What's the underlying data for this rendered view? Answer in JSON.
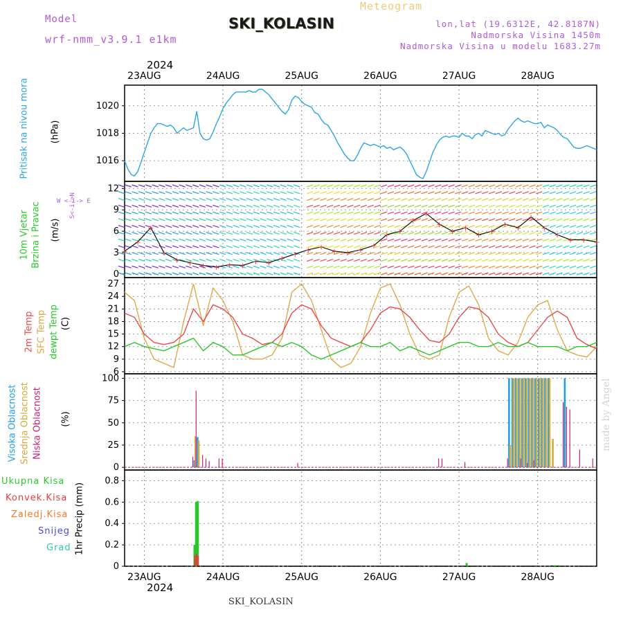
{
  "header": {
    "model_label": "Model",
    "model_name": "wrf-nmm_v3.9.1 e1km",
    "title": "SKI_KOLASIN",
    "meteogram_label": "Meteogram",
    "lonlat": "lon,lat (19.6312E, 42.8187N)",
    "altitude": "Nadmorska Visina 1450m",
    "model_altitude": "Nadmorska Visina u modelu 1683.27m"
  },
  "top_axis": {
    "year": "2024",
    "days": [
      "23AUG",
      "24AUG",
      "25AUG",
      "26AUG",
      "27AUG",
      "28AUG"
    ]
  },
  "bottom_axis": {
    "year": "2024",
    "days": [
      "23AUG",
      "24AUG",
      "25AUG",
      "26AUG",
      "27AUG",
      "28AUG"
    ]
  },
  "footer_station": "SKI_KOLASIN",
  "watermark": "made by Angel",
  "colors": {
    "pressure": "#2aa6e0",
    "temp2m": "#e84a4a",
    "sfc_temp": "#e0a848",
    "dewpoint": "#28c828",
    "high_cloud": "#1e9ee8",
    "mid_cloud": "#d8a83a",
    "low_cloud": "#c8207a",
    "total_precip": "#28c828",
    "conv_precip": "#e83a3a",
    "axis_purple": "#b05ad8"
  },
  "panels": {
    "pressure": {
      "label": "Pritisak na nivou mora",
      "unit": "(hPa)",
      "ticks": [
        "1016",
        "1018",
        "1020"
      ]
    },
    "wind": {
      "label_line1": "10m Vjetar",
      "label_line2": "Brzina i Pravac",
      "unit": "(m/s)",
      "ticks": [
        "0",
        "3",
        "6",
        "9",
        "12"
      ],
      "compass": "W <-i-> E",
      "compass_v": "S<-i->N"
    },
    "temp": {
      "label_2m": "2m Temp",
      "label_sfc": "SFC Temp",
      "label_dew": "dewpt Temp",
      "unit": "(C)",
      "ticks": [
        "6",
        "9",
        "12",
        "15",
        "18",
        "21",
        "24",
        "27"
      ]
    },
    "cloud": {
      "label_high": "Visoka Oblacnost",
      "label_mid": "Srednja Oblacnost",
      "label_low": "Niska Oblacnost",
      "unit": "(%)",
      "ticks": [
        "0",
        "25",
        "50",
        "75",
        "100"
      ]
    },
    "precip": {
      "unit": "1hr Precip (mm)",
      "ticks": [
        "0",
        "0.2",
        "0.4",
        "0.6",
        "0.8"
      ],
      "legend": [
        "Ukupna Kisa",
        "Konvek.Kisa",
        "Zaledj.Kisa",
        "Snijeg",
        "Grad"
      ],
      "legend_colors": [
        "#28c828",
        "#e83a3a",
        "#f07828",
        "#4a4ad8",
        "#28c8b0"
      ]
    }
  },
  "chart_data": [
    {
      "type": "line",
      "title": "Pritisak na nivou mora",
      "ylabel": "(hPa)",
      "ylim": [
        1014.5,
        1021.5
      ],
      "xlim": [
        0,
        144
      ],
      "series": [
        {
          "name": "Pritisak na nivou mora",
          "x": [
            0,
            1,
            2,
            3,
            4,
            5,
            6,
            7,
            8,
            9,
            10,
            11,
            12,
            13,
            14,
            15,
            16,
            17,
            18,
            19,
            20,
            21,
            22,
            23,
            24,
            25,
            26,
            27,
            28,
            29,
            30,
            31,
            32,
            33,
            34,
            35,
            36,
            37,
            38,
            39,
            40,
            41,
            42,
            43,
            44,
            45,
            46,
            47,
            48,
            49,
            50,
            51,
            52,
            53,
            54,
            55,
            56,
            57,
            58,
            59,
            60,
            61,
            62,
            63,
            64,
            65,
            66,
            67,
            68,
            69,
            70,
            71,
            72,
            73,
            74,
            75,
            76,
            77,
            78,
            79,
            80,
            81,
            82,
            83,
            84,
            85,
            86,
            87,
            88,
            89,
            90,
            91,
            92,
            93,
            94,
            95,
            96,
            97,
            98,
            99,
            100,
            101,
            102,
            103,
            104,
            105,
            106,
            107,
            108,
            109,
            110,
            111,
            112,
            113,
            114,
            115,
            116,
            117,
            118,
            119,
            120,
            121,
            122,
            123,
            124,
            125,
            126,
            127,
            128,
            129,
            130,
            131,
            132,
            133,
            134,
            135,
            136,
            137,
            138,
            139,
            140,
            141,
            142,
            143,
            144
          ],
          "values": [
            1016.0,
            1015.4,
            1015.0,
            1014.9,
            1015.2,
            1015.9,
            1016.6,
            1017.3,
            1018.0,
            1018.4,
            1018.7,
            1018.7,
            1018.6,
            1018.5,
            1018.6,
            1018.4,
            1018.0,
            1018.2,
            1018.4,
            1018.2,
            1018.3,
            1018.4,
            1019.6,
            1018.0,
            1017.6,
            1017.5,
            1017.6,
            1018.1,
            1018.7,
            1019.2,
            1019.8,
            1020.2,
            1020.5,
            1020.8,
            1021.0,
            1021.0,
            1021.0,
            1021.0,
            1021.1,
            1021.0,
            1021.0,
            1021.2,
            1021.2,
            1021.0,
            1020.8,
            1020.5,
            1020.2,
            1019.9,
            1019.6,
            1019.4,
            1019.7,
            1020.4,
            1020.7,
            1020.6,
            1020.3,
            1020.1,
            1020.0,
            1019.9,
            1019.5,
            1019.4,
            1019.0,
            1018.7,
            1018.6,
            1018.2,
            1017.8,
            1017.3,
            1016.9,
            1016.5,
            1016.2,
            1016.0,
            1016.0,
            1016.4,
            1016.9,
            1017.3,
            1017.2,
            1017.1,
            1017.2,
            1017.1,
            1017.0,
            1017.1,
            1016.9,
            1017.0,
            1016.8,
            1016.9,
            1017.0,
            1016.8,
            1016.5,
            1016.0,
            1015.5,
            1015.0,
            1014.8,
            1014.7,
            1015.2,
            1015.9,
            1016.6,
            1017.1,
            1017.5,
            1017.7,
            1017.8,
            1017.7,
            1017.8,
            1017.8,
            1017.7,
            1018.0,
            1017.8,
            1017.8,
            1017.6,
            1017.9,
            1018.0,
            1017.8,
            1018.2,
            1018.1,
            1018.0,
            1017.9,
            1018.0,
            1017.8,
            1017.9,
            1018.3,
            1018.6,
            1018.9,
            1019.1,
            1018.9,
            1018.8,
            1018.9,
            1018.8,
            1018.7,
            1018.7,
            1018.8,
            1018.4,
            1018.6,
            1018.5,
            1018.4,
            1018.2,
            1017.9,
            1017.7,
            1017.6,
            1017.3,
            1017.0,
            1016.9,
            1016.9,
            1017.0,
            1017.1,
            1017.0,
            1016.9,
            1016.8
          ]
        }
      ]
    },
    {
      "type": "line",
      "title": "10m Vjetar Brzina i Pravac",
      "ylabel": "(m/s)",
      "ylim": [
        -0.5,
        13
      ],
      "xlim": [
        0,
        144
      ],
      "series": [
        {
          "name": "10m Vjetar",
          "x": [
            0,
            4,
            8,
            12,
            16,
            20,
            24,
            28,
            32,
            36,
            40,
            44,
            48,
            52,
            56,
            60,
            64,
            68,
            72,
            76,
            80,
            84,
            88,
            92,
            96,
            100,
            104,
            108,
            112,
            116,
            120,
            124,
            128,
            132,
            136,
            140,
            144
          ],
          "values": [
            3.2,
            4.5,
            6.5,
            3.0,
            2.0,
            1.6,
            1.2,
            1.0,
            1.3,
            1.2,
            1.8,
            1.6,
            2.2,
            2.8,
            3.4,
            3.8,
            3.2,
            3.0,
            3.4,
            4.0,
            5.5,
            6.0,
            7.5,
            8.5,
            7.0,
            6.0,
            6.5,
            5.5,
            6.0,
            7.0,
            6.5,
            8.0,
            6.5,
            5.5,
            4.8,
            4.8,
            4.5
          ]
        }
      ]
    },
    {
      "type": "line",
      "title": "2m Temp / SFC Temp / dewpt Temp",
      "ylabel": "(C)",
      "ylim": [
        5.5,
        28.5
      ],
      "xlim": [
        0,
        144
      ],
      "series": [
        {
          "name": "2m Temp",
          "x": [
            0,
            3,
            6,
            9,
            12,
            15,
            18,
            21,
            24,
            27,
            30,
            33,
            36,
            39,
            42,
            45,
            48,
            51,
            54,
            57,
            60,
            63,
            66,
            69,
            72,
            75,
            78,
            81,
            84,
            87,
            90,
            93,
            96,
            99,
            102,
            105,
            108,
            111,
            114,
            117,
            120,
            123,
            126,
            129,
            132,
            135,
            138,
            141,
            144
          ],
          "values": [
            20,
            19,
            15,
            13,
            12.5,
            13,
            15,
            21,
            18,
            22,
            21,
            19,
            15,
            14,
            12.5,
            13,
            15,
            20,
            22,
            21,
            17,
            14,
            13,
            12,
            13,
            16,
            20,
            21.5,
            21,
            19,
            16,
            13.5,
            13,
            15,
            19,
            21.5,
            21,
            19,
            15,
            13,
            12,
            13,
            16,
            19,
            20.5,
            19,
            14,
            12.5,
            11.5
          ]
        },
        {
          "name": "SFC Temp",
          "x": [
            0,
            3,
            6,
            9,
            12,
            15,
            18,
            21,
            24,
            27,
            30,
            33,
            36,
            39,
            42,
            45,
            48,
            51,
            54,
            57,
            60,
            63,
            66,
            69,
            72,
            75,
            78,
            81,
            84,
            87,
            90,
            93,
            96,
            99,
            102,
            105,
            108,
            111,
            114,
            117,
            120,
            123,
            126,
            129,
            132,
            135,
            138,
            141,
            144
          ],
          "values": [
            25,
            23,
            14,
            9,
            8,
            7,
            18,
            27,
            17,
            26,
            23,
            18,
            10,
            9,
            9,
            10,
            14,
            25,
            27,
            23,
            16,
            9,
            7,
            8,
            12,
            20,
            26,
            27,
            22,
            15,
            10,
            9,
            10,
            19,
            25,
            26.5,
            22,
            14,
            11,
            10,
            13,
            19,
            22,
            23,
            16,
            11,
            10,
            9.5,
            12
          ]
        },
        {
          "name": "dewpt Temp",
          "x": [
            0,
            3,
            6,
            9,
            12,
            15,
            18,
            21,
            24,
            27,
            30,
            33,
            36,
            39,
            42,
            45,
            48,
            51,
            54,
            57,
            60,
            63,
            66,
            69,
            72,
            75,
            78,
            81,
            84,
            87,
            90,
            93,
            96,
            99,
            102,
            105,
            108,
            111,
            114,
            117,
            120,
            123,
            126,
            129,
            132,
            135,
            138,
            141,
            144
          ],
          "values": [
            12,
            13,
            12,
            11.5,
            11,
            12,
            13,
            14,
            11,
            13,
            12,
            10,
            10,
            11,
            12,
            13,
            12,
            13,
            12,
            10,
            9,
            10,
            11,
            12,
            13,
            12,
            12,
            13,
            11,
            12,
            11,
            10,
            11,
            12,
            13,
            13,
            12,
            12,
            13,
            12,
            12,
            13,
            12,
            12,
            12,
            11,
            12,
            12,
            13
          ]
        }
      ]
    },
    {
      "type": "bar",
      "title": "Visoka / Srednja / Niska Oblacnost",
      "ylabel": "(%)",
      "ylim": [
        -3,
        105
      ],
      "xlim": [
        0,
        144
      ],
      "series": [
        {
          "name": "Visoka Oblacnost",
          "x": [
            21,
            22,
            117,
            118,
            119,
            120,
            121,
            122,
            123,
            124,
            125,
            126,
            127,
            128,
            129,
            131,
            134
          ],
          "values": [
            8,
            34,
            100,
            100,
            100,
            100,
            100,
            100,
            100,
            100,
            100,
            100,
            100,
            100,
            100,
            0,
            100
          ]
        },
        {
          "name": "Srednja Oblacnost",
          "x": [
            21,
            22,
            117,
            118,
            119,
            120,
            121,
            122,
            123,
            124,
            125,
            126,
            127,
            128,
            129,
            130,
            131
          ],
          "values": [
            35,
            30,
            25,
            100,
            100,
            100,
            100,
            100,
            100,
            100,
            100,
            100,
            100,
            100,
            100,
            32,
            0
          ]
        },
        {
          "name": "Niska Oblacnost",
          "x": [
            20,
            21,
            23,
            24,
            25,
            28,
            29,
            52,
            95,
            96,
            103,
            116,
            120,
            122,
            124,
            133,
            134,
            135,
            138,
            142
          ],
          "values": [
            12,
            86,
            14,
            10,
            7,
            10,
            10,
            5,
            10,
            10,
            6,
            10,
            10,
            5,
            8,
            73,
            68,
            65,
            20,
            10
          ]
        }
      ]
    },
    {
      "type": "bar",
      "title": "1hr Precip",
      "ylabel": "1hr Precip (mm)",
      "ylim": [
        0,
        0.9
      ],
      "xlim": [
        0,
        144
      ],
      "series": [
        {
          "name": "Ukupna Kisa",
          "x": [
            21,
            21.5,
            22,
            104,
            130,
            131,
            132
          ],
          "values": [
            0.2,
            0.6,
            0.61,
            0.03,
            0.01,
            0.01,
            0.01
          ]
        },
        {
          "name": "Konvek.Kisa",
          "x": [
            21,
            21.5,
            22
          ],
          "values": [
            0.1,
            0.12,
            0.1
          ]
        }
      ]
    }
  ]
}
